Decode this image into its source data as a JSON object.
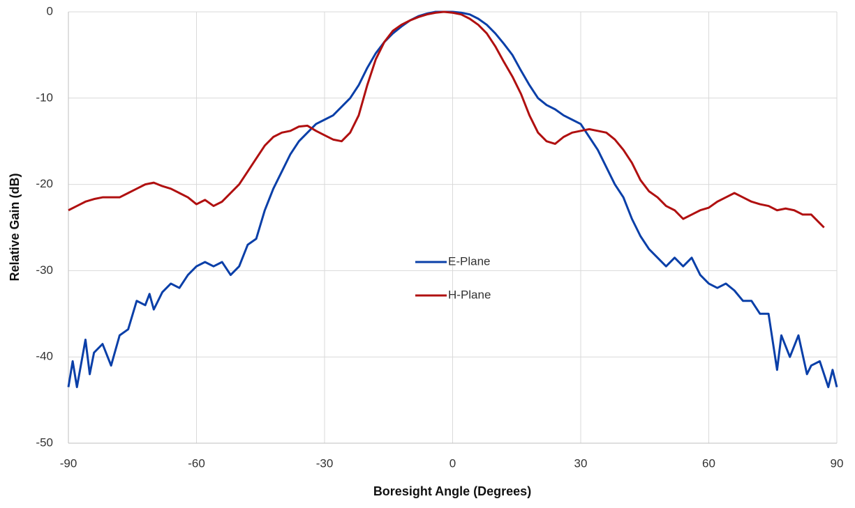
{
  "chart_data": {
    "type": "line",
    "xlabel": "Boresight Angle (Degrees)",
    "ylabel": "Relative Gain (dB)",
    "xlim": [
      -90,
      90
    ],
    "xticks": [
      -90,
      -60,
      -30,
      0,
      30,
      60,
      90
    ],
    "ylim": [
      -50,
      0
    ],
    "yticks": [
      -50,
      -40,
      -30,
      -20,
      -10,
      0
    ],
    "grid": true,
    "legend": "center",
    "series": [
      {
        "name": "E-Plane",
        "color": "#0a3fa8",
        "x": [
          -90,
          -89,
          -88,
          -86,
          -85,
          -84,
          -82,
          -80,
          -78,
          -76,
          -74,
          -72,
          -71,
          -70,
          -68,
          -66,
          -64,
          -62,
          -60,
          -58,
          -56,
          -54,
          -52,
          -50,
          -48,
          -46,
          -44,
          -42,
          -40,
          -38,
          -36,
          -34,
          -32,
          -30,
          -28,
          -26,
          -24,
          -22,
          -20,
          -18,
          -16,
          -14,
          -12,
          -10,
          -8,
          -6,
          -4,
          -2,
          0,
          2,
          4,
          6,
          8,
          10,
          12,
          14,
          16,
          18,
          20,
          22,
          24,
          26,
          28,
          30,
          32,
          34,
          36,
          38,
          40,
          42,
          44,
          46,
          48,
          50,
          52,
          54,
          56,
          58,
          60,
          62,
          64,
          66,
          68,
          70,
          72,
          74,
          76,
          77,
          79,
          81,
          83,
          84,
          86,
          88,
          89,
          90
        ],
        "values": [
          -43.5,
          -40.5,
          -43.5,
          -38,
          -42,
          -39.5,
          -38.5,
          -41,
          -37.5,
          -36.8,
          -33.5,
          -34,
          -32.7,
          -34.5,
          -32.5,
          -31.5,
          -32,
          -30.5,
          -29.5,
          -29,
          -29.5,
          -29,
          -30.5,
          -29.5,
          -27,
          -26.3,
          -23,
          -20.5,
          -18.5,
          -16.5,
          -15,
          -14,
          -13,
          -12.5,
          -12,
          -11,
          -10,
          -8.5,
          -6.5,
          -4.8,
          -3.5,
          -2.5,
          -1.7,
          -1,
          -0.5,
          -0.2,
          0,
          0,
          0,
          -0.1,
          -0.3,
          -0.8,
          -1.5,
          -2.5,
          -3.7,
          -5,
          -6.8,
          -8.5,
          -10,
          -10.8,
          -11.3,
          -12,
          -12.5,
          -13,
          -14.5,
          -16,
          -18,
          -20,
          -21.5,
          -24,
          -26,
          -27.5,
          -28.5,
          -29.5,
          -28.5,
          -29.5,
          -28.5,
          -30.5,
          -31.5,
          -32,
          -31.5,
          -32.3,
          -33.5,
          -33.5,
          -35,
          -35,
          -41.5,
          -37.5,
          -40,
          -37.5,
          -42,
          -41,
          -40.5,
          -43.5,
          -41.5,
          -43.5
        ]
      },
      {
        "name": "H-Plane",
        "color": "#b01010",
        "x": [
          -90,
          -88,
          -86,
          -84,
          -82,
          -80,
          -78,
          -76,
          -74,
          -72,
          -70,
          -68,
          -66,
          -64,
          -62,
          -60,
          -58,
          -56,
          -54,
          -52,
          -50,
          -48,
          -46,
          -44,
          -42,
          -40,
          -38,
          -36,
          -34,
          -32,
          -30,
          -28,
          -26,
          -24,
          -22,
          -20,
          -18,
          -16,
          -14,
          -12,
          -10,
          -8,
          -6,
          -4,
          -2,
          0,
          2,
          4,
          6,
          8,
          10,
          12,
          14,
          16,
          18,
          20,
          22,
          24,
          26,
          28,
          30,
          32,
          34,
          36,
          38,
          40,
          42,
          44,
          46,
          48,
          50,
          52,
          54,
          56,
          58,
          60,
          62,
          64,
          66,
          68,
          70,
          72,
          74,
          76,
          78,
          80,
          82,
          84,
          86,
          87
        ],
        "values": [
          -23,
          -22.5,
          -22,
          -21.7,
          -21.5,
          -21.5,
          -21.5,
          -21,
          -20.5,
          -20,
          -19.8,
          -20.2,
          -20.5,
          -21,
          -21.5,
          -22.3,
          -21.8,
          -22.5,
          -22,
          -21,
          -20,
          -18.5,
          -17,
          -15.5,
          -14.5,
          -14,
          -13.8,
          -13.3,
          -13.2,
          -13.8,
          -14.3,
          -14.8,
          -15,
          -14,
          -12,
          -8.5,
          -5.5,
          -3.5,
          -2.2,
          -1.5,
          -1,
          -0.6,
          -0.3,
          -0.1,
          0,
          -0.1,
          -0.3,
          -0.8,
          -1.5,
          -2.5,
          -4,
          -5.8,
          -7.5,
          -9.5,
          -12,
          -14,
          -15,
          -15.3,
          -14.5,
          -14,
          -13.8,
          -13.6,
          -13.8,
          -14,
          -14.8,
          -16,
          -17.5,
          -19.5,
          -20.8,
          -21.5,
          -22.5,
          -23,
          -24,
          -23.5,
          -23,
          -22.7,
          -22,
          -21.5,
          -21,
          -21.5,
          -22,
          -22.3,
          -22.5,
          -23,
          -22.8,
          -23,
          -23.5,
          -23.5,
          -24.5,
          -25
        ]
      }
    ]
  }
}
